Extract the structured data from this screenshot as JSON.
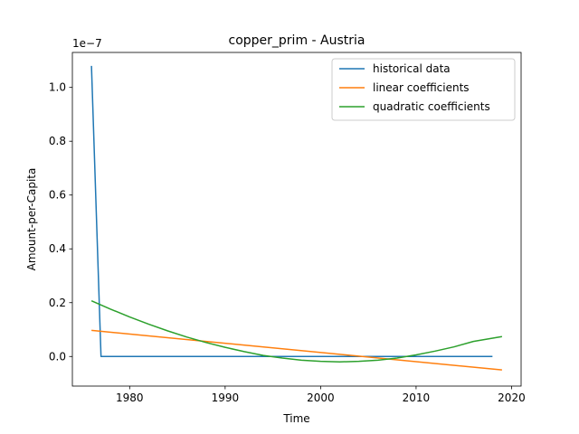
{
  "chart_data": {
    "type": "line",
    "title": "copper_prim - Austria",
    "xlabel": "Time",
    "ylabel": "Amount-per-Capita",
    "y_offset_label": "1e−7",
    "xlim": [
      1974,
      2021
    ],
    "ylim": [
      -1.1e-08,
      1.13e-07
    ],
    "x_ticks": [
      1980,
      1990,
      2000,
      2010,
      2020
    ],
    "x_tick_labels": [
      "1980",
      "1990",
      "2000",
      "2010",
      "2020"
    ],
    "y_ticks": [
      0,
      2e-08,
      4e-08,
      6e-08,
      8e-08,
      1e-07
    ],
    "y_tick_labels": [
      "0.0",
      "0.2",
      "0.4",
      "0.6",
      "0.8",
      "1.0"
    ],
    "grid": false,
    "legend_position": "top-right",
    "series": [
      {
        "name": "historical data",
        "color": "#1f77b4",
        "x": [
          1976,
          1977,
          1978,
          1980,
          1985,
          1990,
          1995,
          2000,
          2005,
          2010,
          2015,
          2018
        ],
        "y": [
          1.08e-07,
          0,
          0,
          0,
          0,
          0,
          0,
          0,
          0,
          0,
          0,
          0
        ]
      },
      {
        "name": "linear coefficients",
        "color": "#ff7f0e",
        "x": [
          1976,
          2019
        ],
        "y": [
          9.7e-09,
          -5e-09
        ]
      },
      {
        "name": "quadratic coefficients",
        "color": "#2ca02c",
        "x": [
          1976,
          1978,
          1980,
          1982,
          1984,
          1986,
          1988,
          1990,
          1992,
          1994,
          1996,
          1998,
          2000,
          2002,
          2004,
          2006,
          2008,
          2010,
          2012,
          2014,
          2016,
          2019
        ],
        "y": [
          2.07e-08,
          1.76e-08,
          1.47e-08,
          1.2e-08,
          9.5e-09,
          7.2e-09,
          5.2e-09,
          3.4e-09,
          1.8e-09,
          4e-10,
          -6e-10,
          -1.4e-09,
          -1.8e-09,
          -2e-09,
          -1.8e-09,
          -1.4e-09,
          -6e-10,
          6e-10,
          2e-09,
          3.6e-09,
          5.6e-09,
          7.4e-09
        ]
      }
    ]
  }
}
